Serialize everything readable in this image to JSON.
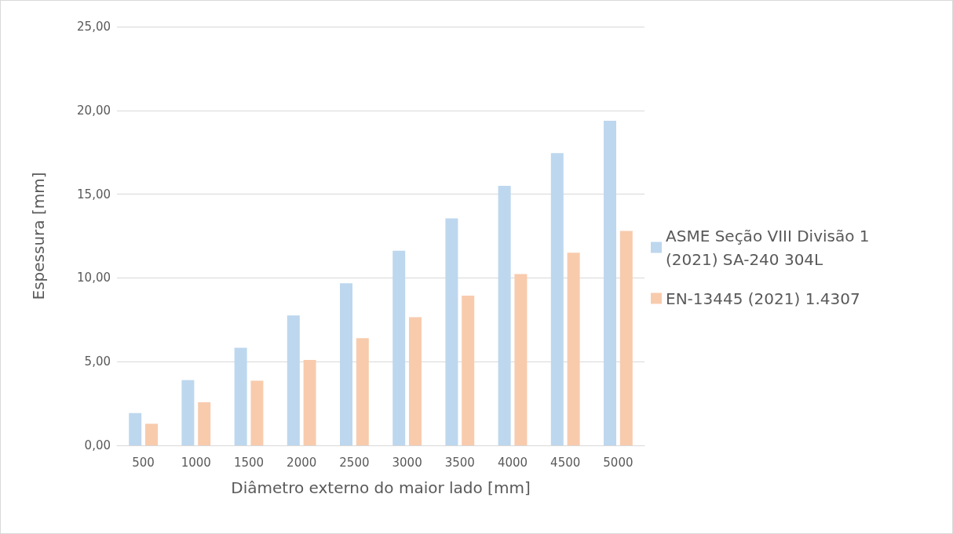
{
  "chart_data": {
    "type": "bar",
    "xlabel": "Diâmetro externo do maior lado [mm]",
    "ylabel": "Espessura [mm]",
    "categories": [
      "500",
      "1000",
      "1500",
      "2000",
      "2500",
      "3000",
      "3500",
      "4000",
      "4500",
      "5000"
    ],
    "series": [
      {
        "name": "ASME Seção VIII Divisão 1 (2021) SA-240 304L",
        "color": "#bdd7ee",
        "values": [
          1.93,
          3.9,
          5.83,
          7.76,
          9.68,
          11.62,
          13.55,
          15.5,
          17.45,
          19.38
        ]
      },
      {
        "name": "EN-13445 (2021) 1.4307",
        "color": "#f8cbad",
        "values": [
          1.29,
          2.57,
          3.86,
          5.1,
          6.4,
          7.66,
          8.94,
          10.23,
          11.5,
          12.8
        ]
      }
    ],
    "ylim": [
      0,
      25
    ],
    "yticks": [
      {
        "value": 0,
        "label": "0,00"
      },
      {
        "value": 5,
        "label": "5,00"
      },
      {
        "value": 10,
        "label": "10,00"
      },
      {
        "value": 15,
        "label": "15,00"
      },
      {
        "value": 20,
        "label": "20,00"
      },
      {
        "value": 25,
        "label": "25,00"
      }
    ],
    "grid": "y",
    "legend": "right"
  }
}
